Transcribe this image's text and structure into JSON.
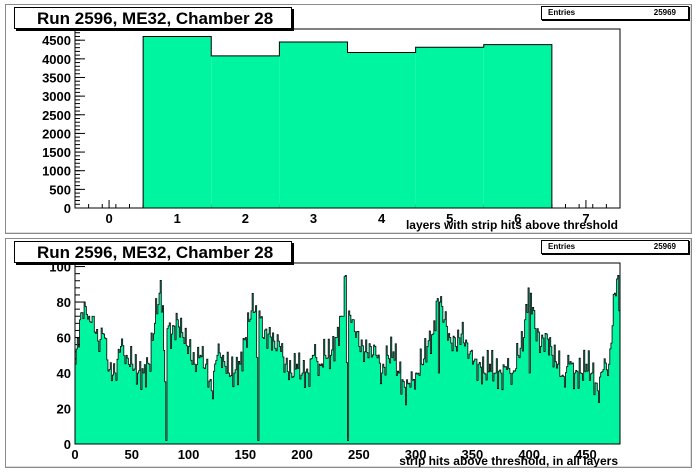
{
  "panels": [
    {
      "title": "Run 2596, ME32, Chamber 28",
      "stats": {
        "label": "Entries",
        "value": "25969"
      }
    },
    {
      "title": "Run 2596, ME32, Chamber 28",
      "stats": {
        "label": "Entries",
        "value": "25969"
      }
    }
  ],
  "colors": {
    "fill": "#00f5a0",
    "line": "#000000",
    "frame": "#8a8a8a"
  },
  "chart_data": [
    {
      "type": "bar",
      "title": "Run 2596, ME32, Chamber 28",
      "xlabel": "layers with strip hits above threshold",
      "ylabel": "",
      "xlim": [
        -0.5,
        7.5
      ],
      "ylim": [
        0,
        4800
      ],
      "xticks": [
        0,
        1,
        2,
        3,
        4,
        5,
        6,
        7
      ],
      "yticks": [
        0,
        500,
        1000,
        1500,
        2000,
        2500,
        3000,
        3500,
        4000,
        4500
      ],
      "categories": [
        1,
        2,
        3,
        4,
        5,
        6
      ],
      "values": [
        4600,
        4080,
        4450,
        4170,
        4310,
        4380
      ],
      "entries": 25969
    },
    {
      "type": "bar",
      "title": "Run 2596, ME32, Chamber 28",
      "xlabel": "strip hits above threshold, in all layers",
      "ylabel": "",
      "xlim": [
        0,
        480
      ],
      "ylim": [
        0,
        102
      ],
      "xticks": [
        0,
        50,
        100,
        150,
        200,
        250,
        300,
        350,
        400,
        450
      ],
      "yticks": [
        0,
        20,
        40,
        60,
        80,
        100
      ],
      "bin_width": 1,
      "knots": [
        [
          0,
          45
        ],
        [
          4,
          70
        ],
        [
          8,
          80
        ],
        [
          12,
          72
        ],
        [
          16,
          72
        ],
        [
          20,
          58
        ],
        [
          25,
          62
        ],
        [
          30,
          42
        ],
        [
          35,
          40
        ],
        [
          40,
          55
        ],
        [
          45,
          50
        ],
        [
          50,
          45
        ],
        [
          55,
          40
        ],
        [
          60,
          40
        ],
        [
          65,
          45
        ],
        [
          70,
          68
        ],
        [
          74,
          85
        ],
        [
          77,
          78
        ],
        [
          80,
          2
        ],
        [
          81,
          65
        ],
        [
          85,
          62
        ],
        [
          90,
          70
        ],
        [
          95,
          60
        ],
        [
          100,
          55
        ],
        [
          105,
          45
        ],
        [
          110,
          50
        ],
        [
          115,
          45
        ],
        [
          120,
          30
        ],
        [
          125,
          50
        ],
        [
          130,
          50
        ],
        [
          135,
          40
        ],
        [
          140,
          40
        ],
        [
          145,
          45
        ],
        [
          150,
          60
        ],
        [
          155,
          75
        ],
        [
          159,
          78
        ],
        [
          161,
          2
        ],
        [
          162,
          75
        ],
        [
          165,
          60
        ],
        [
          170,
          62
        ],
        [
          175,
          58
        ],
        [
          180,
          55
        ],
        [
          185,
          45
        ],
        [
          190,
          40
        ],
        [
          195,
          45
        ],
        [
          200,
          40
        ],
        [
          205,
          40
        ],
        [
          210,
          50
        ],
        [
          215,
          45
        ],
        [
          220,
          50
        ],
        [
          225,
          50
        ],
        [
          230,
          60
        ],
        [
          235,
          72
        ],
        [
          238,
          95
        ],
        [
          240,
          2
        ],
        [
          241,
          75
        ],
        [
          245,
          70
        ],
        [
          250,
          55
        ],
        [
          255,
          52
        ],
        [
          260,
          55
        ],
        [
          265,
          50
        ],
        [
          270,
          40
        ],
        [
          275,
          50
        ],
        [
          280,
          52
        ],
        [
          285,
          40
        ],
        [
          290,
          32
        ],
        [
          295,
          32
        ],
        [
          300,
          40
        ],
        [
          305,
          45
        ],
        [
          310,
          55
        ],
        [
          315,
          62
        ],
        [
          319,
          82
        ],
        [
          320,
          40
        ],
        [
          321,
          80
        ],
        [
          325,
          70
        ],
        [
          330,
          60
        ],
        [
          335,
          55
        ],
        [
          340,
          62
        ],
        [
          345,
          57
        ],
        [
          350,
          45
        ],
        [
          355,
          45
        ],
        [
          360,
          40
        ],
        [
          365,
          45
        ],
        [
          370,
          40
        ],
        [
          375,
          40
        ],
        [
          380,
          42
        ],
        [
          385,
          40
        ],
        [
          390,
          50
        ],
        [
          395,
          60
        ],
        [
          399,
          88
        ],
        [
          400,
          40
        ],
        [
          401,
          85
        ],
        [
          405,
          65
        ],
        [
          410,
          55
        ],
        [
          415,
          62
        ],
        [
          420,
          50
        ],
        [
          425,
          45
        ],
        [
          430,
          38
        ],
        [
          435,
          45
        ],
        [
          440,
          40
        ],
        [
          445,
          40
        ],
        [
          450,
          45
        ],
        [
          455,
          40
        ],
        [
          460,
          30
        ],
        [
          465,
          42
        ],
        [
          470,
          45
        ],
        [
          475,
          85
        ],
        [
          478,
          95
        ],
        [
          479,
          75
        ]
      ],
      "entries": 25969
    }
  ]
}
